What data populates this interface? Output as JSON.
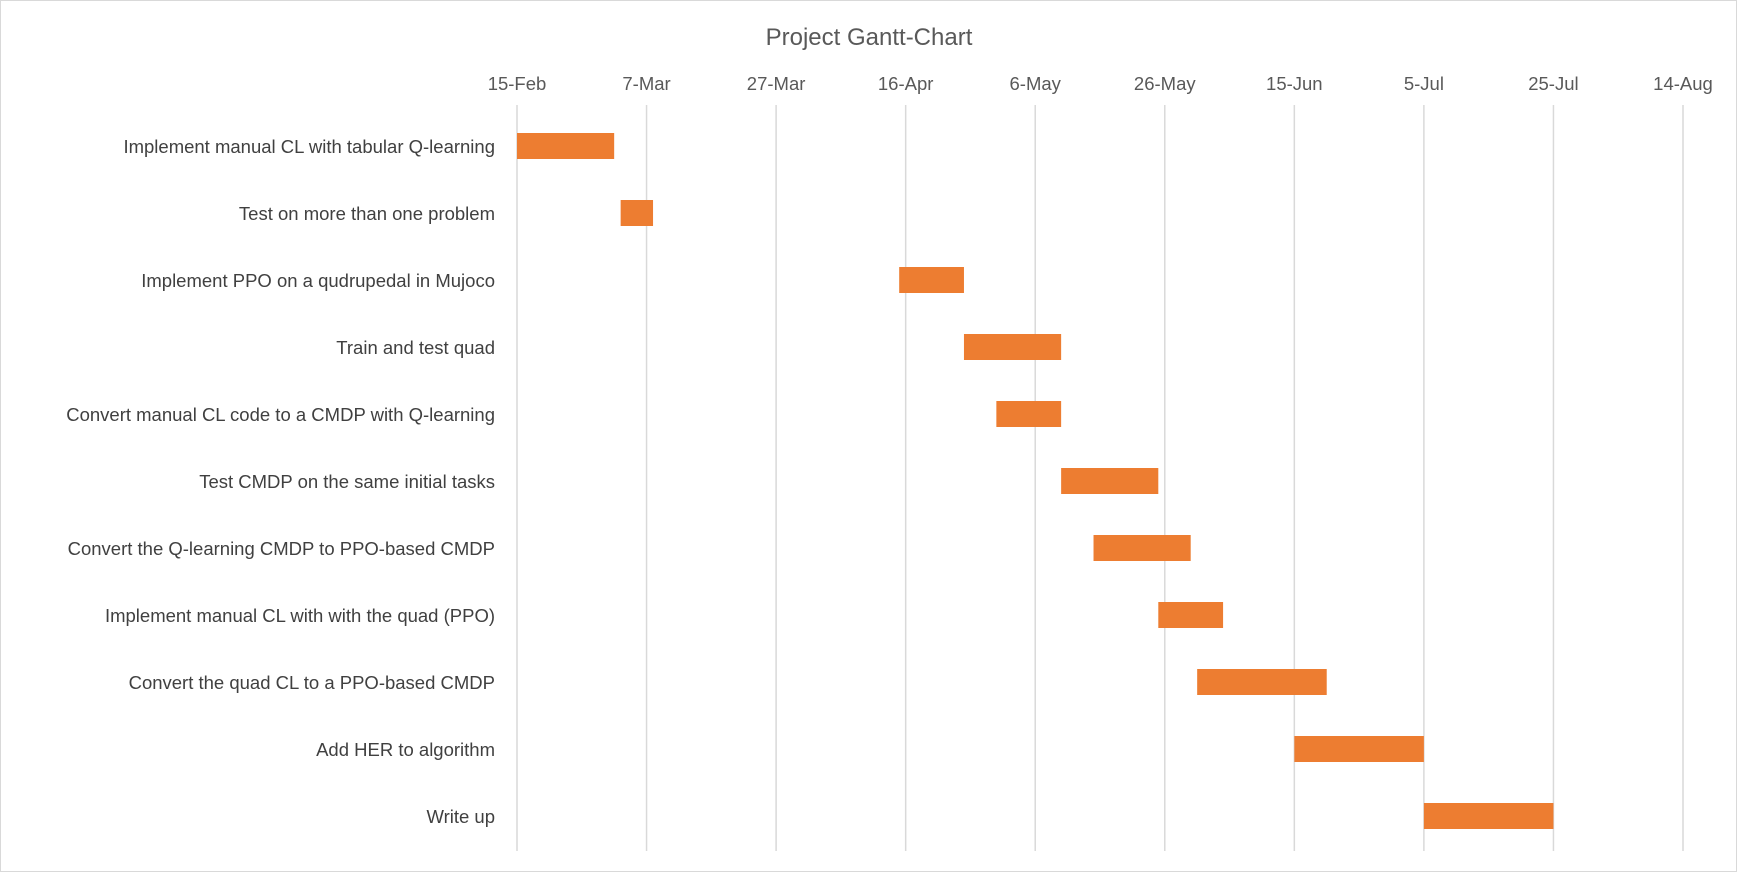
{
  "chart_data": {
    "type": "bar",
    "orientation": "horizontal-gantt",
    "title": "Project Gantt-Chart",
    "x_axis": {
      "position": "top",
      "ticks": [
        "15-Feb",
        "7-Mar",
        "27-Mar",
        "16-Apr",
        "6-May",
        "26-May",
        "15-Jun",
        "5-Jul",
        "25-Jul",
        "14-Aug"
      ],
      "range": [
        "15-Feb",
        "14-Aug"
      ],
      "gridlines": true
    },
    "bar_color": "#ED7D31",
    "tasks": [
      {
        "label": "Implement manual CL with tabular Q-learning",
        "start": "15-Feb",
        "end": "2-Mar"
      },
      {
        "label": "Test on more than one problem",
        "start": "3-Mar",
        "end": "8-Mar"
      },
      {
        "label": "Implement PPO on a qudrupedal in Mujoco",
        "start": "15-Apr",
        "end": "25-Apr"
      },
      {
        "label": "Train and test quad",
        "start": "25-Apr",
        "end": "10-May"
      },
      {
        "label": "Convert manual CL code to a CMDP with Q-learning",
        "start": "30-Apr",
        "end": "10-May"
      },
      {
        "label": "Test CMDP on the same initial tasks",
        "start": "10-May",
        "end": "25-May"
      },
      {
        "label": "Convert the Q-learning CMDP to PPO-based CMDP",
        "start": "15-May",
        "end": "30-May"
      },
      {
        "label": "Implement manual CL with with the quad (PPO)",
        "start": "25-May",
        "end": "4-Jun"
      },
      {
        "label": "Convert the quad CL to a PPO-based CMDP",
        "start": "31-May",
        "end": "20-Jun"
      },
      {
        "label": "Add HER to algorithm",
        "start": "15-Jun",
        "end": "5-Jul"
      },
      {
        "label": "Write up",
        "start": "5-Jul",
        "end": "25-Jul"
      }
    ]
  }
}
